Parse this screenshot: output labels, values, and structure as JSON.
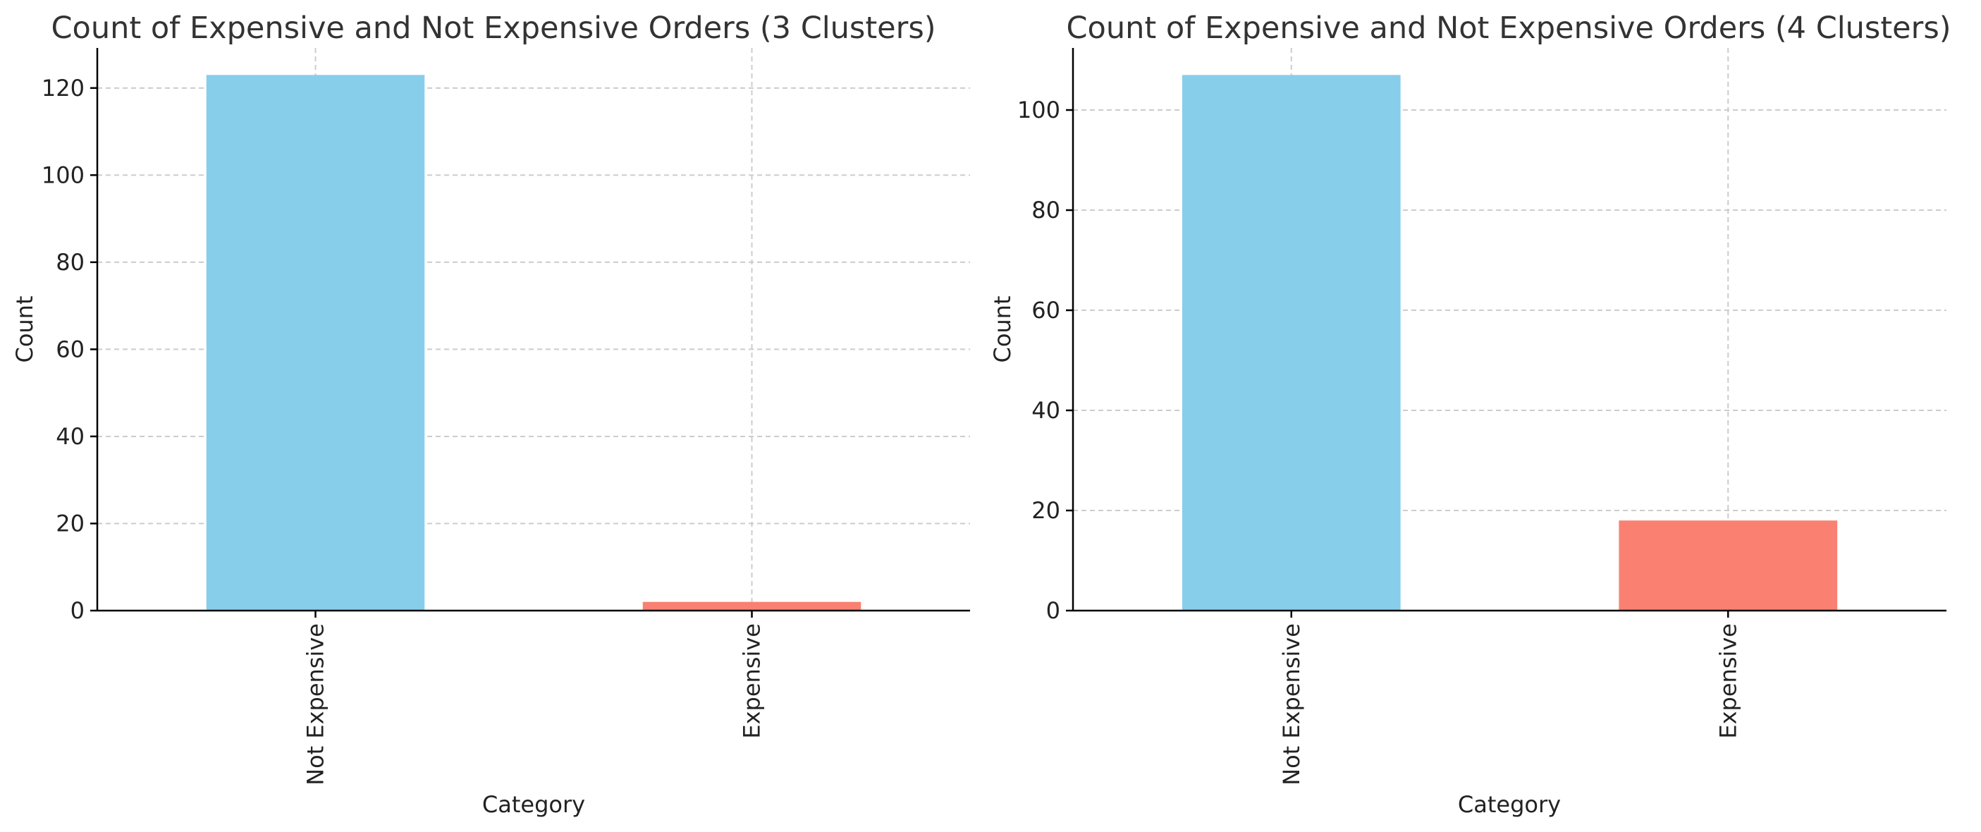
{
  "chart_data": [
    {
      "type": "bar",
      "title": "Count of Expensive and Not Expensive Orders (3 Clusters)",
      "xlabel": "Category",
      "ylabel": "Count",
      "categories": [
        "Not Expensive",
        "Expensive"
      ],
      "values": [
        123,
        2
      ],
      "colors": [
        "#87CEEB",
        "#FA8072"
      ],
      "ylim": [
        0,
        129.2
      ],
      "yticks": [
        0,
        20,
        40,
        60,
        80,
        100,
        120
      ],
      "grid": true
    },
    {
      "type": "bar",
      "title": "Count of Expensive and Not Expensive Orders (4 Clusters)",
      "xlabel": "Category",
      "ylabel": "Count",
      "categories": [
        "Not Expensive",
        "Expensive"
      ],
      "values": [
        107,
        18
      ],
      "colors": [
        "#87CEEB",
        "#FA8072"
      ],
      "ylim": [
        0,
        112.4
      ],
      "yticks": [
        0,
        20,
        40,
        60,
        80,
        100
      ],
      "grid": true
    }
  ]
}
